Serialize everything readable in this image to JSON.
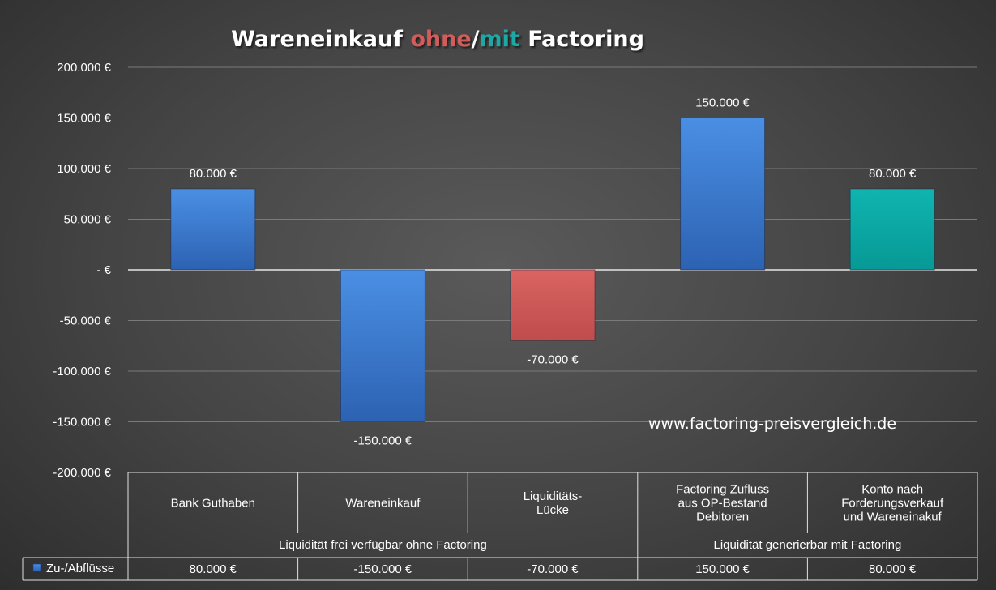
{
  "chart_data": {
    "type": "bar",
    "title": {
      "parts": [
        {
          "text": "Wareneinkauf ",
          "color": "#ffffff"
        },
        {
          "text": "ohne",
          "color": "#d25c5a"
        },
        {
          "text": "/",
          "color": "#ffffff"
        },
        {
          "text": "mit",
          "color": "#1ea8a4"
        },
        {
          "text": " Factoring",
          "color": "#ffffff"
        }
      ]
    },
    "categories": [
      [
        "Bank Guthaben"
      ],
      [
        "Wareneinkauf"
      ],
      [
        "Liquiditäts-",
        "Lücke"
      ],
      [
        "Factoring Zufluss",
        "aus OP-Bestand",
        "Debitoren"
      ],
      [
        "Konto nach",
        "Forderungsverkauf",
        "und Wareneinakuf"
      ]
    ],
    "category_groups": [
      {
        "label": "Liquidität frei verfügbar ohne Factoring",
        "span": 3
      },
      {
        "label": "Liquidität generierbar mit Factoring",
        "span": 2
      }
    ],
    "series": [
      {
        "name": "Zu-/Abflüsse",
        "values": [
          80000,
          -150000,
          -70000,
          150000,
          80000
        ],
        "labels": [
          "80.000 €",
          "-150.000 €",
          "-70.000 €",
          "150.000 €",
          "80.000 €"
        ],
        "colors": [
          "#3f7fd3",
          "#3f7fd3",
          "#d25c5a",
          "#3f7fd3",
          "#0aaaa6"
        ]
      }
    ],
    "ylim": [
      -200000,
      200000
    ],
    "yticks": [
      200000,
      150000,
      100000,
      50000,
      0,
      -50000,
      -100000,
      -150000,
      -200000
    ],
    "ytick_labels": [
      "200.000 €",
      "150.000 €",
      "100.000 €",
      "50.000 €",
      "-  €",
      "-50.000 €",
      "-100.000 €",
      "-150.000 €",
      "-200.000 €"
    ],
    "grid": true,
    "legend": "data-table",
    "watermark": "www.factoring-preisvergleich.de"
  }
}
